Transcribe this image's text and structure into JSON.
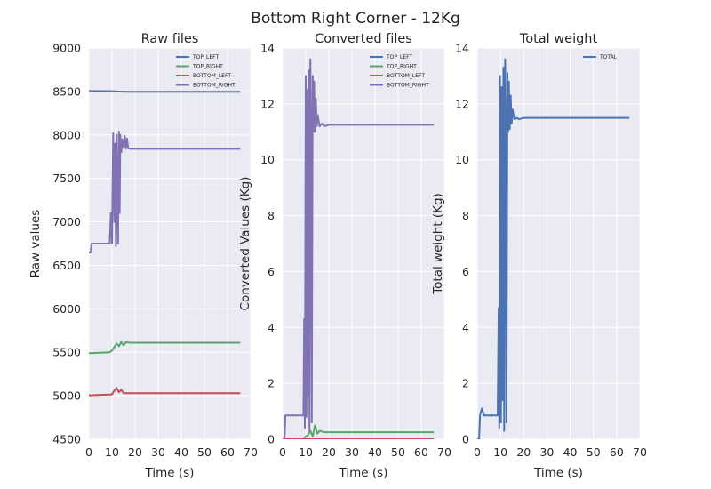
{
  "figure": {
    "suptitle": "Bottom Right Corner - 12Kg",
    "background": "#ffffff",
    "axes_background": "#eaeaf2",
    "grid_color": "#ffffff"
  },
  "chart_data": [
    {
      "type": "line",
      "title": "Raw files",
      "xlabel": "Time (s)",
      "ylabel": "Raw values",
      "xlim": [
        0,
        70
      ],
      "ylim": [
        4500,
        9000
      ],
      "xticks": [
        "0",
        "10",
        "20",
        "30",
        "40",
        "50",
        "60",
        "70"
      ],
      "yticks": [
        "4500",
        "5000",
        "5500",
        "6000",
        "6500",
        "7000",
        "7500",
        "8000",
        "8500",
        "9000"
      ],
      "grid": true,
      "legend": "top-right",
      "series": [
        {
          "name": "TOP_LEFT",
          "color": "#4c72b0",
          "x": [
            0,
            5,
            10,
            12,
            14,
            16,
            20,
            30,
            40,
            50,
            60,
            65.5
          ],
          "y": [
            8505,
            8504,
            8503,
            8500,
            8498,
            8497,
            8497,
            8497,
            8497,
            8497,
            8497,
            8497
          ]
        },
        {
          "name": "TOP_RIGHT",
          "color": "#55a868",
          "x": [
            0,
            5,
            9,
            10,
            11,
            12,
            13,
            14,
            15,
            16,
            18,
            20,
            30,
            40,
            50,
            60,
            65.5
          ],
          "y": [
            5490,
            5495,
            5500,
            5520,
            5560,
            5600,
            5570,
            5620,
            5580,
            5615,
            5610,
            5610,
            5610,
            5610,
            5610,
            5610,
            5610
          ]
        },
        {
          "name": "BOTTOM_LEFT",
          "color": "#c44e52",
          "x": [
            0,
            5,
            10,
            11,
            12,
            13,
            14,
            15,
            16,
            20,
            30,
            40,
            50,
            60,
            65.5
          ],
          "y": [
            5005,
            5010,
            5015,
            5060,
            5090,
            5040,
            5070,
            5030,
            5030,
            5030,
            5030,
            5030,
            5030,
            5030,
            5030
          ]
        },
        {
          "name": "BOTTOM_RIGHT",
          "color": "#8172b2",
          "x": [
            0,
            0.8,
            1.2,
            3,
            6,
            9,
            9.5,
            10,
            10.5,
            11,
            11.3,
            11.7,
            12,
            12.3,
            12.6,
            13,
            13.3,
            13.6,
            14,
            14.5,
            15,
            15.5,
            16,
            16.5,
            17,
            18,
            20,
            30,
            40,
            50,
            60,
            65.5
          ],
          "y": [
            6650,
            6650,
            6750,
            6750,
            6750,
            6750,
            7100,
            6750,
            8020,
            7000,
            7900,
            6720,
            8000,
            7400,
            6750,
            8040,
            7100,
            8000,
            7800,
            7950,
            7850,
            7990,
            7840,
            7960,
            7845,
            7840,
            7840,
            7840,
            7840,
            7840,
            7840,
            7840
          ]
        }
      ]
    },
    {
      "type": "line",
      "title": "Converted files",
      "xlabel": "Time (s)",
      "ylabel": "Converted Values (Kg)",
      "xlim": [
        0,
        70
      ],
      "ylim": [
        0,
        14
      ],
      "xticks": [
        "0",
        "10",
        "20",
        "30",
        "40",
        "50",
        "60",
        "70"
      ],
      "yticks": [
        "0",
        "2",
        "4",
        "6",
        "8",
        "10",
        "12",
        "14"
      ],
      "grid": true,
      "legend": "top-right",
      "series": [
        {
          "name": "TOP_LEFT",
          "color": "#4c72b0",
          "x": [
            0,
            20,
            40,
            65.5
          ],
          "y": [
            0,
            0,
            0,
            0
          ]
        },
        {
          "name": "TOP_RIGHT",
          "color": "#55a868",
          "x": [
            0,
            9,
            10,
            11,
            12,
            13,
            14,
            15,
            16,
            18,
            20,
            30,
            40,
            50,
            60,
            65.5
          ],
          "y": [
            0,
            0,
            0.1,
            0.15,
            0.3,
            0.1,
            0.5,
            0.2,
            0.3,
            0.25,
            0.25,
            0.25,
            0.25,
            0.25,
            0.25,
            0.25
          ]
        },
        {
          "name": "BOTTOM_LEFT",
          "color": "#c44e52",
          "x": [
            0,
            20,
            40,
            65.5
          ],
          "y": [
            0,
            0,
            0,
            0
          ]
        },
        {
          "name": "BOTTOM_RIGHT",
          "color": "#8172b2",
          "x": [
            0,
            0.8,
            1.2,
            5,
            8,
            9,
            9.3,
            9.6,
            10,
            10.3,
            10.6,
            11,
            11.3,
            11.6,
            12,
            12.3,
            12.6,
            13,
            13.3,
            13.6,
            14,
            14.4,
            14.8,
            15.2,
            16,
            17,
            18,
            20,
            30,
            40,
            50,
            60,
            65.5
          ],
          "y": [
            0,
            0,
            0.85,
            0.85,
            0.85,
            0.85,
            4.3,
            0.4,
            13.0,
            0.8,
            12.5,
            1.5,
            13.2,
            0.3,
            13.6,
            10.5,
            0.6,
            13.0,
            11.0,
            12.8,
            11.0,
            12.2,
            11.2,
            11.6,
            11.2,
            11.3,
            11.2,
            11.25,
            11.25,
            11.25,
            11.25,
            11.25,
            11.25
          ]
        }
      ]
    },
    {
      "type": "line",
      "title": "Total weight",
      "xlabel": "Time (s)",
      "ylabel": "Total weight (Kg)",
      "xlim": [
        0,
        70
      ],
      "ylim": [
        0,
        14
      ],
      "xticks": [
        "0",
        "10",
        "20",
        "30",
        "40",
        "50",
        "60",
        "70"
      ],
      "yticks": [
        "0",
        "2",
        "4",
        "6",
        "8",
        "10",
        "12",
        "14"
      ],
      "grid": true,
      "legend": "top-right",
      "series": [
        {
          "name": "TOTAL",
          "color": "#4c72b0",
          "x": [
            0,
            0.8,
            1.2,
            2,
            3,
            5,
            8,
            8.8,
            9.2,
            9.5,
            9.8,
            10.2,
            10.5,
            10.9,
            11.3,
            11.6,
            12,
            12.3,
            12.6,
            13,
            13.3,
            13.6,
            14,
            14.4,
            14.8,
            15.2,
            16,
            17,
            18,
            20,
            30,
            40,
            50,
            60,
            65.5
          ],
          "y": [
            0,
            0,
            0.85,
            1.1,
            0.85,
            0.85,
            0.85,
            0.85,
            4.7,
            0.4,
            13.0,
            0.6,
            12.6,
            1.4,
            13.3,
            0.3,
            13.6,
            10.5,
            0.6,
            13.1,
            11.0,
            12.8,
            11.1,
            12.3,
            11.3,
            11.8,
            11.45,
            11.5,
            11.45,
            11.5,
            11.5,
            11.5,
            11.5,
            11.5,
            11.5
          ]
        }
      ]
    }
  ]
}
